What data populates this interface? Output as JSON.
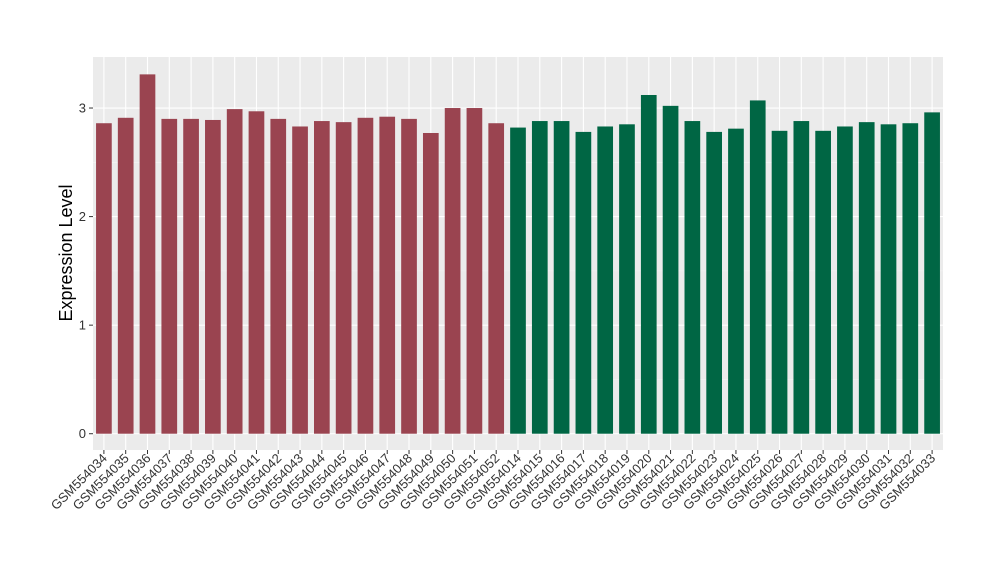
{
  "chart_data": {
    "type": "bar",
    "title": "",
    "xlabel": "",
    "ylabel": "Expression Level",
    "ylim": [
      -0.15,
      3.47
    ],
    "yticks": [
      0,
      1,
      2,
      3
    ],
    "grid": true,
    "legend": "none",
    "colors": {
      "group1": "#9a4450",
      "group2": "#006644",
      "panel": "#ebebeb",
      "grid": "#ffffff"
    },
    "categories": [
      "GSM554034",
      "GSM554035",
      "GSM554036",
      "GSM554037",
      "GSM554038",
      "GSM554039",
      "GSM554040",
      "GSM554041",
      "GSM554042",
      "GSM554043",
      "GSM554044",
      "GSM554045",
      "GSM554046",
      "GSM554047",
      "GSM554048",
      "GSM554049",
      "GSM554050",
      "GSM554051",
      "GSM554052",
      "GSM554014",
      "GSM554015",
      "GSM554016",
      "GSM554017",
      "GSM554018",
      "GSM554019",
      "GSM554020",
      "GSM554021",
      "GSM554022",
      "GSM554023",
      "GSM554024",
      "GSM554025",
      "GSM554026",
      "GSM554027",
      "GSM554028",
      "GSM554029",
      "GSM554030",
      "GSM554031",
      "GSM554032",
      "GSM554033"
    ],
    "values": [
      2.86,
      2.91,
      3.31,
      2.9,
      2.9,
      2.89,
      2.99,
      2.97,
      2.9,
      2.83,
      2.88,
      2.87,
      2.91,
      2.92,
      2.9,
      2.77,
      3.0,
      3.0,
      2.86,
      2.82,
      2.88,
      2.88,
      2.78,
      2.83,
      2.85,
      3.12,
      3.02,
      2.88,
      2.78,
      2.81,
      3.07,
      2.79,
      2.88,
      2.79,
      2.83,
      2.87,
      2.85,
      2.86,
      2.96
    ],
    "groups": [
      1,
      1,
      1,
      1,
      1,
      1,
      1,
      1,
      1,
      1,
      1,
      1,
      1,
      1,
      1,
      1,
      1,
      1,
      1,
      2,
      2,
      2,
      2,
      2,
      2,
      2,
      2,
      2,
      2,
      2,
      2,
      2,
      2,
      2,
      2,
      2,
      2,
      2,
      2
    ]
  }
}
